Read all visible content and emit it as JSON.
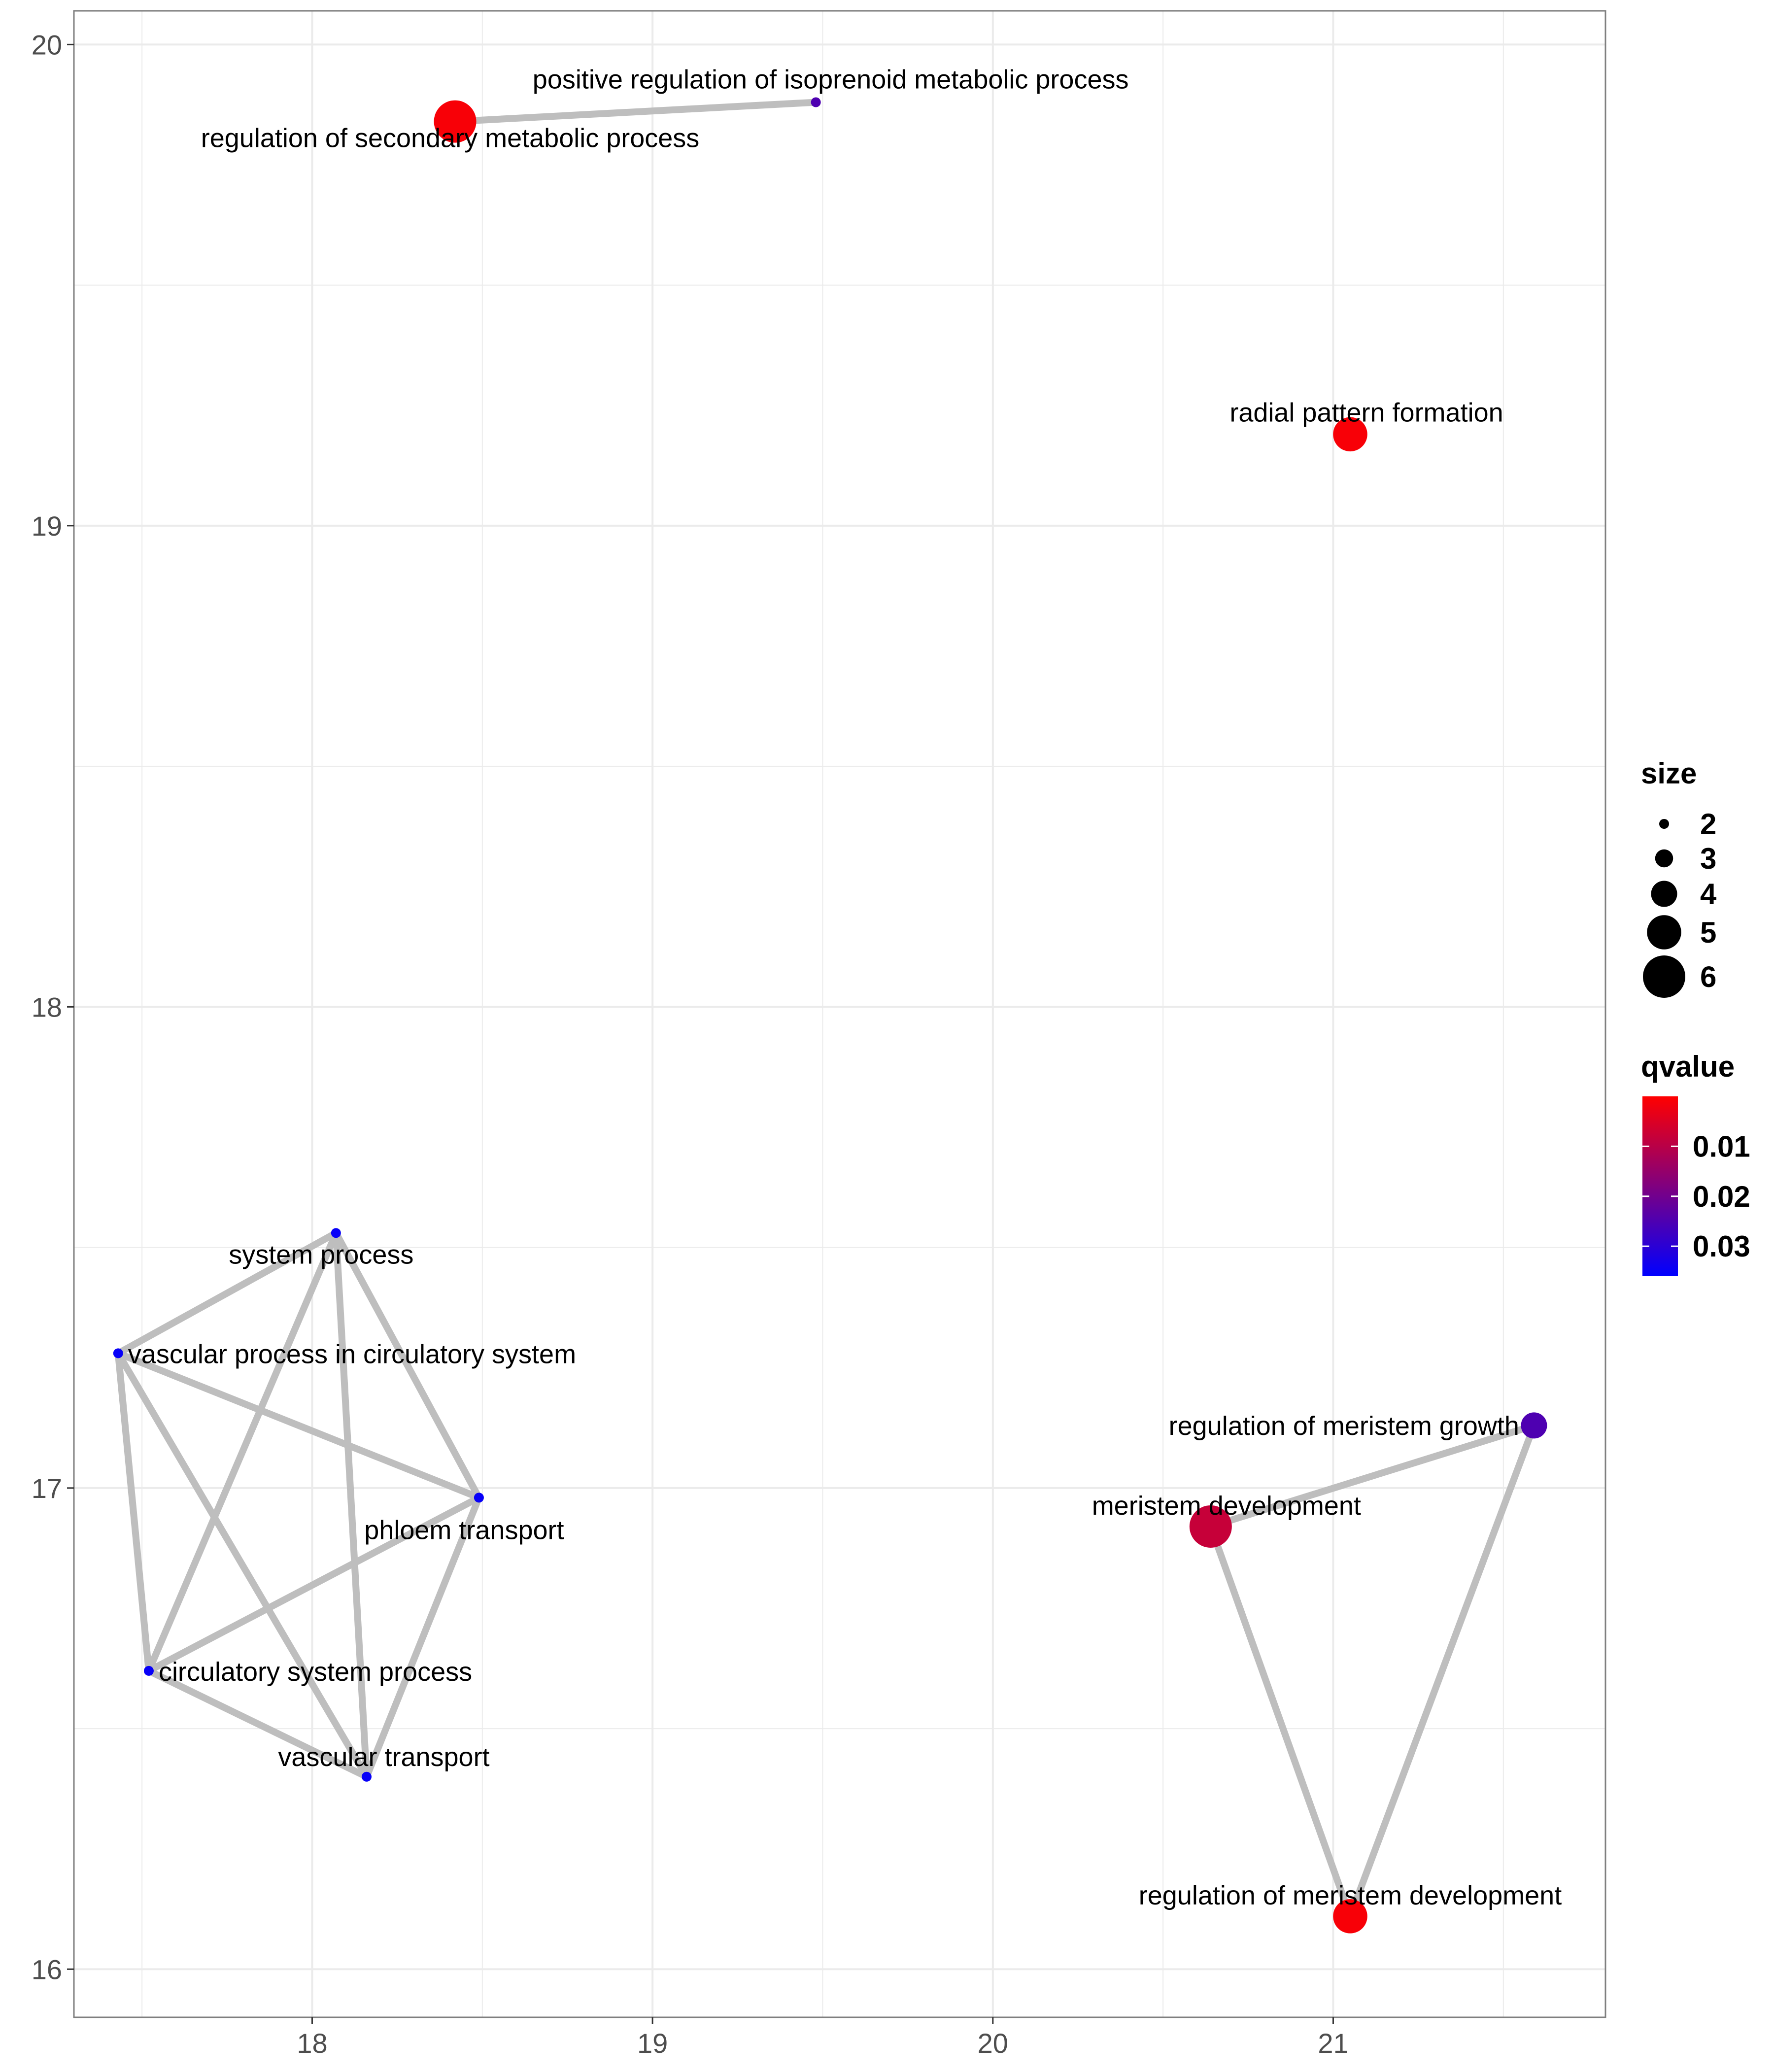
{
  "chart_data": {
    "type": "scatter",
    "title": "",
    "xlabel": "",
    "ylabel": "",
    "xlim": [
      17.3,
      21.8
    ],
    "ylim": [
      15.9,
      20.07
    ],
    "x_ticks": [
      18,
      19,
      20,
      21
    ],
    "y_ticks": [
      16,
      17,
      18,
      19,
      20
    ],
    "grid": true,
    "nodes": [
      {
        "id": "rsmp",
        "label": "regulation of secondary metabolic process",
        "x": 18.42,
        "y": 19.84,
        "size": 6,
        "qvalue": 0.001
      },
      {
        "id": "primp",
        "label": "positive regulation of isoprenoid metabolic process",
        "x": 19.48,
        "y": 19.88,
        "size": 2,
        "qvalue": 0.025
      },
      {
        "id": "rpf",
        "label": "radial pattern formation",
        "x": 21.05,
        "y": 19.19,
        "size": 5,
        "qvalue": 0.001
      },
      {
        "id": "sp",
        "label": "system process",
        "x": 18.07,
        "y": 17.53,
        "size": 2,
        "qvalue": 0.035
      },
      {
        "id": "vpcs",
        "label": "vascular process in circulatory system",
        "x": 17.43,
        "y": 17.28,
        "size": 2,
        "qvalue": 0.035
      },
      {
        "id": "pt",
        "label": "phloem transport",
        "x": 18.49,
        "y": 16.98,
        "size": 2,
        "qvalue": 0.035
      },
      {
        "id": "csp",
        "label": "circulatory system process",
        "x": 17.52,
        "y": 16.62,
        "size": 2,
        "qvalue": 0.035
      },
      {
        "id": "vt",
        "label": "vascular transport",
        "x": 18.16,
        "y": 16.4,
        "size": 2,
        "qvalue": 0.035
      },
      {
        "id": "rmg",
        "label": "regulation of meristem growth",
        "x": 21.59,
        "y": 17.13,
        "size": 4,
        "qvalue": 0.025
      },
      {
        "id": "md",
        "label": "meristem development",
        "x": 20.64,
        "y": 16.92,
        "size": 6,
        "qvalue": 0.008
      },
      {
        "id": "rmd",
        "label": "regulation of meristem development",
        "x": 21.05,
        "y": 16.11,
        "size": 5,
        "qvalue": 0.001
      }
    ],
    "edges": [
      [
        "rsmp",
        "primp"
      ],
      [
        "sp",
        "vpcs"
      ],
      [
        "sp",
        "pt"
      ],
      [
        "sp",
        "csp"
      ],
      [
        "sp",
        "vt"
      ],
      [
        "vpcs",
        "pt"
      ],
      [
        "vpcs",
        "csp"
      ],
      [
        "vpcs",
        "vt"
      ],
      [
        "pt",
        "csp"
      ],
      [
        "pt",
        "vt"
      ],
      [
        "csp",
        "vt"
      ],
      [
        "md",
        "rmg"
      ],
      [
        "md",
        "rmd"
      ],
      [
        "rmg",
        "rmd"
      ]
    ],
    "legend": {
      "position": "right",
      "size_title": "size",
      "size_values": [
        2,
        3,
        4,
        5,
        6
      ],
      "color_title": "qvalue",
      "color_ticks": [
        0.01,
        0.02,
        0.03
      ],
      "color_range": [
        0.0,
        0.036
      ],
      "color_low": "#ff0000",
      "color_high": "#0000ff"
    },
    "colors": {
      "edge": "#bebebe",
      "grid": "#ebebeb",
      "panel_border": "#7f7f7f"
    }
  }
}
